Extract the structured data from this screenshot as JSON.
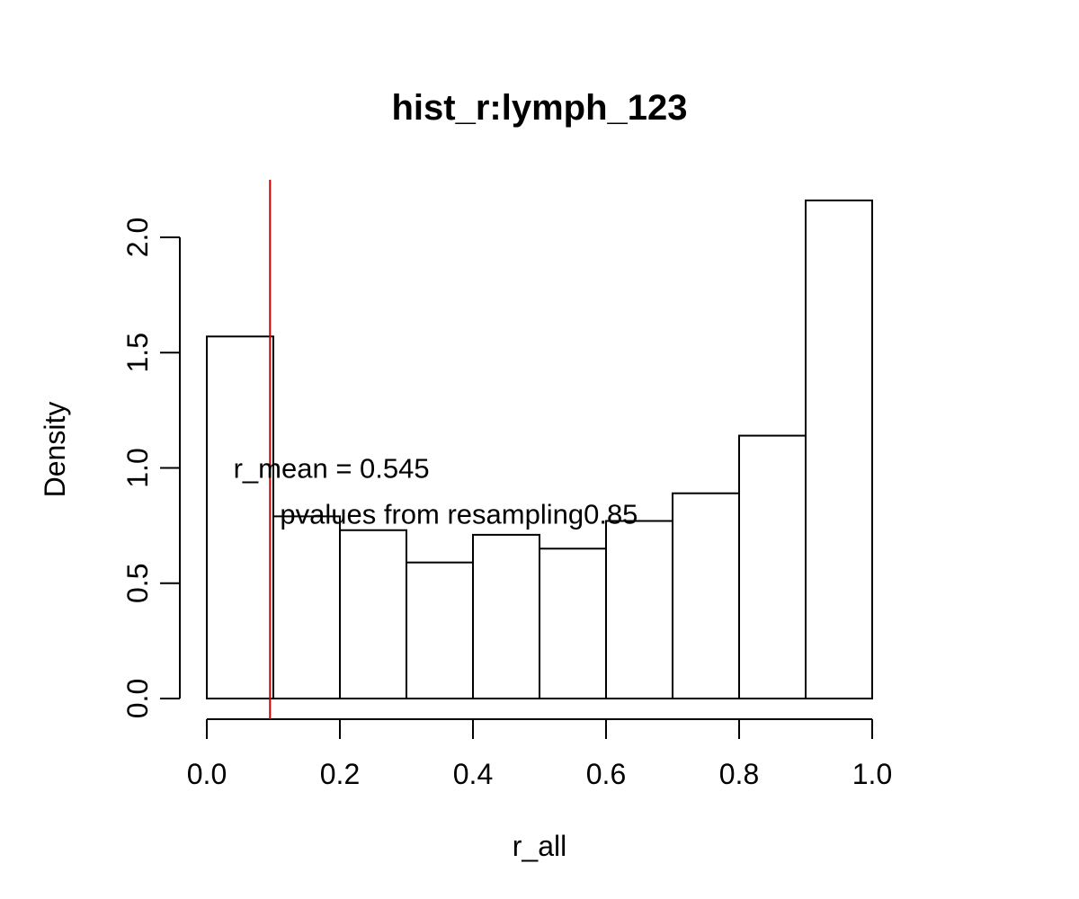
{
  "chart_data": {
    "type": "bar",
    "title": "hist_r:lymph_123",
    "xlabel": "r_all",
    "ylabel": "Density",
    "bins": [
      {
        "x0": 0.0,
        "x1": 0.1,
        "density": 1.57
      },
      {
        "x0": 0.1,
        "x1": 0.2,
        "density": 0.79
      },
      {
        "x0": 0.2,
        "x1": 0.3,
        "density": 0.73
      },
      {
        "x0": 0.3,
        "x1": 0.4,
        "density": 0.59
      },
      {
        "x0": 0.4,
        "x1": 0.5,
        "density": 0.71
      },
      {
        "x0": 0.5,
        "x1": 0.6,
        "density": 0.65
      },
      {
        "x0": 0.6,
        "x1": 0.7,
        "density": 0.77
      },
      {
        "x0": 0.7,
        "x1": 0.8,
        "density": 0.89
      },
      {
        "x0": 0.8,
        "x1": 0.9,
        "density": 1.14
      },
      {
        "x0": 0.9,
        "x1": 1.0,
        "density": 2.16
      }
    ],
    "xlim": [
      0.0,
      1.0
    ],
    "ylim": [
      0.0,
      2.0
    ],
    "x_ticks": [
      "0.0",
      "0.2",
      "0.4",
      "0.6",
      "0.8",
      "1.0"
    ],
    "y_ticks": [
      "0.0",
      "0.5",
      "1.0",
      "1.5",
      "2.0"
    ],
    "vline": {
      "x": 0.095,
      "color": "#cc0000"
    },
    "annotations": [
      {
        "text": "r_mean = 0.545",
        "x": 0.04,
        "y": 1.0
      },
      {
        "text": "pvalues from resampling0.85",
        "x": 0.11,
        "y": 0.8
      }
    ],
    "grid": false,
    "bar_fill": "#ffffff",
    "bar_stroke": "#000000"
  }
}
